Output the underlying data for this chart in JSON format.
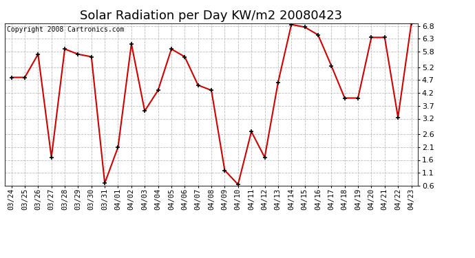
{
  "title": "Solar Radiation per Day KW/m2 20080423",
  "copyright": "Copyright 2008 Cartronics.com",
  "dates": [
    "03/24",
    "03/25",
    "03/26",
    "03/27",
    "03/28",
    "03/29",
    "03/30",
    "03/31",
    "04/01",
    "04/02",
    "04/03",
    "04/04",
    "04/05",
    "04/06",
    "04/07",
    "04/08",
    "04/09",
    "04/10",
    "04/11",
    "04/12",
    "04/13",
    "04/14",
    "04/15",
    "04/16",
    "04/17",
    "04/18",
    "04/19",
    "04/20",
    "04/21",
    "04/22",
    "04/23"
  ],
  "values": [
    4.8,
    4.8,
    5.7,
    1.7,
    5.9,
    5.7,
    5.6,
    0.7,
    2.1,
    6.1,
    3.5,
    4.3,
    5.9,
    5.6,
    4.5,
    4.3,
    1.2,
    0.65,
    2.7,
    1.7,
    4.6,
    6.85,
    6.75,
    6.45,
    5.25,
    4.0,
    4.0,
    6.35,
    6.35,
    3.25,
    6.9
  ],
  "line_color": "#cc0000",
  "marker_color": "#000000",
  "bg_color": "#ffffff",
  "plot_bg_color": "#ffffff",
  "grid_color": "#bbbbbb",
  "ylim": [
    0.6,
    6.9
  ],
  "yticks": [
    0.6,
    1.1,
    1.6,
    2.1,
    2.6,
    3.2,
    3.7,
    4.2,
    4.7,
    5.2,
    5.8,
    6.3,
    6.8
  ],
  "title_fontsize": 13,
  "copyright_fontsize": 7,
  "tick_fontsize": 7.5,
  "ytick_fontsize": 8
}
